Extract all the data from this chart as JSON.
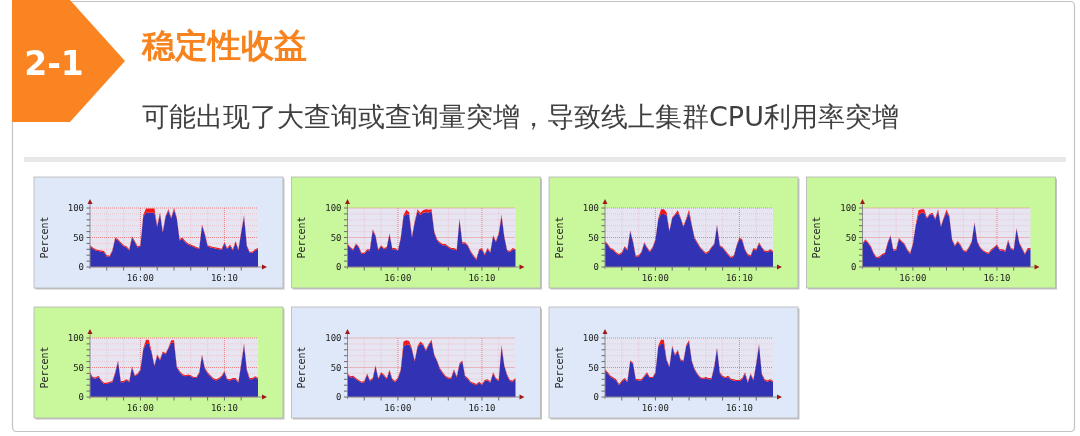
{
  "chart_data": [
    {
      "type": "area",
      "stacked": true,
      "title": "稳定性收益",
      "subtitle": "可能出现了大查询或查询量突增，导致线上集群CPU利用率突增",
      "annotations": [
        "2-1"
      ],
      "ylabel": "Percent",
      "grid": true,
      "xlim": [
        15.9,
        16.2333
      ],
      "ylim": [
        0,
        100
      ],
      "xticks": [
        {
          "value": 15.9333,
          "label": null
        },
        {
          "value": 15.9667,
          "label": null
        },
        {
          "value": 16,
          "label": "16:00"
        },
        {
          "value": 16.0333,
          "label": null
        },
        {
          "value": 16.0667,
          "label": null
        },
        {
          "value": 16.1,
          "label": null
        },
        {
          "value": 16.1333,
          "label": null
        },
        {
          "value": 16.1667,
          "label": "16:10"
        },
        {
          "value": 16.2,
          "label": null
        }
      ],
      "yticks": [
        0,
        {
          "value": 10,
          "label": null
        },
        {
          "value": 20,
          "label": null
        },
        {
          "value": 30,
          "label": null
        },
        {
          "value": 40,
          "label": null
        },
        50,
        {
          "value": 60,
          "label": null
        },
        {
          "value": 70,
          "label": null
        },
        {
          "value": 80,
          "label": null
        },
        {
          "value": 90,
          "label": null
        },
        100
      ],
      "x": [
        15.9,
        15.9056,
        15.9111,
        15.9167,
        15.9222,
        15.9278,
        15.9333,
        15.9389,
        15.9444,
        15.95,
        15.9556,
        15.9611,
        15.9667,
        15.9722,
        15.9778,
        15.9833,
        15.9889,
        15.9944,
        16,
        16.0056,
        16.0111,
        16.0167,
        16.0222,
        16.0278,
        16.0333,
        16.0389,
        16.0444,
        16.05,
        16.0556,
        16.0611,
        16.0667,
        16.0722,
        16.0778,
        16.0833,
        16.0889,
        16.0944,
        16.1,
        16.1056,
        16.1111,
        16.1167,
        16.1222,
        16.1278,
        16.1333,
        16.1389,
        16.1444,
        16.15,
        16.1556,
        16.1611,
        16.1667,
        16.1722,
        16.1778,
        16.1833,
        16.1889,
        16.1944,
        16.2,
        16.2056,
        16.2111,
        16.2167,
        16.2222,
        16.2278,
        16.2333
      ],
      "series": [
        {
          "color": "#3232b4",
          "values": [
            35,
            31,
            28,
            27,
            26,
            25,
            18,
            17,
            27,
            48,
            45,
            40,
            35,
            33,
            28,
            50,
            42,
            33,
            35,
            85,
            92,
            92,
            92,
            92,
            68,
            90,
            58,
            85,
            95,
            82,
            97,
            82,
            45,
            48,
            42,
            38,
            36,
            34,
            32,
            30,
            70,
            55,
            35,
            33,
            32,
            31,
            30,
            29,
            40,
            30,
            36,
            28,
            42,
            28,
            58,
            85,
            35,
            24,
            24,
            28,
            30
          ]
        },
        {
          "color": "#f01818",
          "values": [
            2,
            2,
            2,
            2,
            2,
            2,
            2,
            2,
            2,
            2,
            2,
            2,
            2,
            2,
            2,
            2,
            2,
            2,
            2,
            3,
            7,
            7,
            7,
            7,
            2,
            3,
            2,
            2,
            3,
            2,
            3,
            2,
            2,
            2,
            2,
            2,
            2,
            2,
            2,
            2,
            2,
            2,
            2,
            2,
            2,
            2,
            2,
            2,
            2,
            2,
            2,
            2,
            2,
            2,
            2,
            3,
            2,
            2,
            2,
            2,
            2
          ]
        }
      ]
    },
    {
      "type": "area",
      "stacked": true,
      "ylabel": "Percent",
      "grid": true,
      "xlim": [
        15.9,
        16.2333
      ],
      "ylim": [
        0,
        100
      ],
      "xticks": [
        {
          "value": 15.9333,
          "label": null
        },
        {
          "value": 15.9667,
          "label": null
        },
        {
          "value": 16,
          "label": "16:00"
        },
        {
          "value": 16.0333,
          "label": null
        },
        {
          "value": 16.0667,
          "label": null
        },
        {
          "value": 16.1,
          "label": null
        },
        {
          "value": 16.1333,
          "label": null
        },
        {
          "value": 16.1667,
          "label": "16:10"
        },
        {
          "value": 16.2,
          "label": null
        }
      ],
      "yticks": [
        0,
        {
          "value": 10,
          "label": null
        },
        {
          "value": 20,
          "label": null
        },
        {
          "value": 30,
          "label": null
        },
        {
          "value": 40,
          "label": null
        },
        50,
        {
          "value": 60,
          "label": null
        },
        {
          "value": 70,
          "label": null
        },
        {
          "value": 80,
          "label": null
        },
        {
          "value": 90,
          "label": null
        },
        100
      ],
      "x": [
        15.9,
        15.9056,
        15.9111,
        15.9167,
        15.9222,
        15.9278,
        15.9333,
        15.9389,
        15.9444,
        15.95,
        15.9556,
        15.9611,
        15.9667,
        15.9722,
        15.9778,
        15.9833,
        15.9889,
        15.9944,
        16,
        16.0056,
        16.0111,
        16.0167,
        16.0222,
        16.0278,
        16.0333,
        16.0389,
        16.0444,
        16.05,
        16.0556,
        16.0611,
        16.0667,
        16.0722,
        16.0778,
        16.0833,
        16.0889,
        16.0944,
        16.1,
        16.1056,
        16.1111,
        16.1167,
        16.1222,
        16.1278,
        16.1333,
        16.1389,
        16.1444,
        16.15,
        16.1556,
        16.1611,
        16.1667,
        16.1722,
        16.1778,
        16.1833,
        16.1889,
        16.1944,
        16.2,
        16.2056,
        16.2111,
        16.2167,
        16.2222,
        16.2278,
        16.2333
      ],
      "series": [
        {
          "color": "#3232b4",
          "values": [
            38,
            32,
            28,
            38,
            33,
            22,
            22,
            28,
            28,
            62,
            52,
            28,
            35,
            30,
            32,
            55,
            30,
            30,
            27,
            48,
            85,
            90,
            88,
            50,
            75,
            95,
            88,
            92,
            93,
            92,
            95,
            58,
            45,
            40,
            37,
            37,
            33,
            30,
            30,
            28,
            80,
            40,
            40,
            35,
            25,
            18,
            12,
            28,
            30,
            20,
            30,
            24,
            52,
            42,
            55,
            86,
            50,
            27,
            25,
            30,
            28
          ]
        },
        {
          "color": "#f01818",
          "values": [
            2,
            2,
            2,
            2,
            2,
            2,
            2,
            2,
            2,
            2,
            2,
            2,
            2,
            2,
            2,
            2,
            2,
            2,
            2,
            2,
            3,
            7,
            5,
            2,
            2,
            3,
            4,
            4,
            5,
            5,
            3,
            2,
            2,
            2,
            2,
            2,
            2,
            2,
            2,
            2,
            2,
            2,
            2,
            2,
            2,
            2,
            2,
            2,
            2,
            2,
            2,
            2,
            2,
            2,
            2,
            3,
            2,
            2,
            2,
            2,
            2
          ]
        }
      ]
    },
    {
      "type": "area",
      "stacked": true,
      "ylabel": "Percent",
      "grid": true,
      "xlim": [
        15.9,
        16.2333
      ],
      "ylim": [
        0,
        100
      ],
      "xticks": [
        {
          "value": 15.9333,
          "label": null
        },
        {
          "value": 15.9667,
          "label": null
        },
        {
          "value": 16,
          "label": "16:00"
        },
        {
          "value": 16.0333,
          "label": null
        },
        {
          "value": 16.0667,
          "label": null
        },
        {
          "value": 16.1,
          "label": null
        },
        {
          "value": 16.1333,
          "label": null
        },
        {
          "value": 16.1667,
          "label": "16:10"
        },
        {
          "value": 16.2,
          "label": null
        }
      ],
      "yticks": [
        0,
        {
          "value": 10,
          "label": null
        },
        {
          "value": 20,
          "label": null
        },
        {
          "value": 30,
          "label": null
        },
        {
          "value": 40,
          "label": null
        },
        50,
        {
          "value": 60,
          "label": null
        },
        {
          "value": 70,
          "label": null
        },
        {
          "value": 80,
          "label": null
        },
        {
          "value": 90,
          "label": null
        },
        100
      ],
      "x": [
        15.9,
        15.9056,
        15.9111,
        15.9167,
        15.9222,
        15.9278,
        15.9333,
        15.9389,
        15.9444,
        15.95,
        15.9556,
        15.9611,
        15.9667,
        15.9722,
        15.9778,
        15.9833,
        15.9889,
        15.9944,
        16,
        16.0056,
        16.0111,
        16.0167,
        16.0222,
        16.0278,
        16.0333,
        16.0389,
        16.0444,
        16.05,
        16.0556,
        16.0611,
        16.0667,
        16.0722,
        16.0778,
        16.0833,
        16.0889,
        16.0944,
        16.1,
        16.1056,
        16.1111,
        16.1167,
        16.1222,
        16.1278,
        16.1333,
        16.1389,
        16.1444,
        16.15,
        16.1556,
        16.1611,
        16.1667,
        16.1722,
        16.1778,
        16.1833,
        16.1889,
        16.1944,
        16.2,
        16.2056,
        16.2111,
        16.2167,
        16.2222,
        16.2278,
        16.2333
      ],
      "series": [
        {
          "color": "#3232b4",
          "values": [
            42,
            37,
            30,
            28,
            23,
            20,
            23,
            33,
            28,
            60,
            42,
            17,
            18,
            24,
            40,
            32,
            25,
            32,
            45,
            80,
            90,
            90,
            88,
            60,
            82,
            88,
            92,
            82,
            68,
            80,
            92,
            70,
            48,
            40,
            32,
            27,
            22,
            25,
            32,
            38,
            70,
            35,
            32,
            26,
            20,
            15,
            18,
            35,
            48,
            45,
            28,
            20,
            18,
            30,
            28,
            40,
            32,
            26,
            25,
            28,
            25
          ]
        },
        {
          "color": "#f01818",
          "values": [
            2,
            2,
            2,
            2,
            2,
            2,
            2,
            2,
            2,
            2,
            2,
            2,
            2,
            2,
            2,
            2,
            2,
            2,
            2,
            2,
            8,
            8,
            5,
            2,
            2,
            2,
            4,
            2,
            2,
            2,
            5,
            2,
            2,
            2,
            2,
            2,
            2,
            2,
            2,
            2,
            2,
            2,
            2,
            2,
            2,
            2,
            2,
            2,
            2,
            2,
            2,
            2,
            2,
            2,
            2,
            2,
            2,
            2,
            2,
            2,
            2
          ]
        }
      ]
    },
    {
      "type": "area",
      "stacked": true,
      "ylabel": "Percent",
      "grid": true,
      "xlim": [
        15.9,
        16.2333
      ],
      "ylim": [
        0,
        100
      ],
      "xticks": [
        {
          "value": 15.9333,
          "label": null
        },
        {
          "value": 15.9667,
          "label": null
        },
        {
          "value": 16,
          "label": "16:00"
        },
        {
          "value": 16.0333,
          "label": null
        },
        {
          "value": 16.0667,
          "label": null
        },
        {
          "value": 16.1,
          "label": null
        },
        {
          "value": 16.1333,
          "label": null
        },
        {
          "value": 16.1667,
          "label": "16:10"
        },
        {
          "value": 16.2,
          "label": null
        }
      ],
      "yticks": [
        0,
        {
          "value": 10,
          "label": null
        },
        {
          "value": 20,
          "label": null
        },
        {
          "value": 30,
          "label": null
        },
        {
          "value": 40,
          "label": null
        },
        50,
        {
          "value": 60,
          "label": null
        },
        {
          "value": 70,
          "label": null
        },
        {
          "value": 80,
          "label": null
        },
        {
          "value": 90,
          "label": null
        },
        100
      ],
      "x": [
        15.9,
        15.9056,
        15.9111,
        15.9167,
        15.9222,
        15.9278,
        15.9333,
        15.9389,
        15.9444,
        15.95,
        15.9556,
        15.9611,
        15.9667,
        15.9722,
        15.9778,
        15.9833,
        15.9889,
        15.9944,
        16,
        16.0056,
        16.0111,
        16.0167,
        16.0222,
        16.0278,
        16.0333,
        16.0389,
        16.0444,
        16.05,
        16.0556,
        16.0611,
        16.0667,
        16.0722,
        16.0778,
        16.0833,
        16.0889,
        16.0944,
        16.1,
        16.1056,
        16.1111,
        16.1167,
        16.1222,
        16.1278,
        16.1333,
        16.1389,
        16.1444,
        16.15,
        16.1556,
        16.1611,
        16.1667,
        16.1722,
        16.1778,
        16.1833,
        16.1889,
        16.1944,
        16.2,
        16.2056,
        16.2111,
        16.2167,
        16.2222,
        16.2278,
        16.2333
      ],
      "series": [
        {
          "color": "#3232b4",
          "values": [
            38,
            45,
            40,
            33,
            22,
            15,
            16,
            20,
            22,
            40,
            52,
            28,
            28,
            47,
            42,
            38,
            28,
            22,
            38,
            70,
            88,
            92,
            92,
            82,
            88,
            90,
            80,
            95,
            68,
            82,
            92,
            85,
            45,
            35,
            42,
            36,
            27,
            25,
            32,
            42,
            74,
            42,
            32,
            27,
            24,
            22,
            28,
            32,
            36,
            28,
            28,
            26,
            44,
            30,
            28,
            64,
            40,
            30,
            21,
            30,
            30
          ]
        },
        {
          "color": "#f01818",
          "values": [
            2,
            2,
            2,
            2,
            2,
            2,
            2,
            2,
            2,
            2,
            2,
            2,
            2,
            2,
            2,
            2,
            2,
            2,
            2,
            2,
            8,
            6,
            6,
            2,
            2,
            2,
            2,
            3,
            2,
            2,
            5,
            2,
            2,
            2,
            2,
            2,
            2,
            2,
            2,
            2,
            2,
            2,
            2,
            2,
            2,
            2,
            2,
            2,
            2,
            2,
            2,
            2,
            2,
            2,
            2,
            2,
            2,
            2,
            2,
            2,
            2
          ]
        }
      ]
    },
    {
      "type": "area",
      "stacked": true,
      "ylabel": "Percent",
      "grid": true,
      "xlim": [
        15.9,
        16.2333
      ],
      "ylim": [
        0,
        100
      ],
      "xticks": [
        {
          "value": 15.9333,
          "label": null
        },
        {
          "value": 15.9667,
          "label": null
        },
        {
          "value": 16,
          "label": "16:00"
        },
        {
          "value": 16.0333,
          "label": null
        },
        {
          "value": 16.0667,
          "label": null
        },
        {
          "value": 16.1,
          "label": null
        },
        {
          "value": 16.1333,
          "label": null
        },
        {
          "value": 16.1667,
          "label": "16:10"
        },
        {
          "value": 16.2,
          "label": null
        }
      ],
      "yticks": [
        0,
        {
          "value": 10,
          "label": null
        },
        {
          "value": 20,
          "label": null
        },
        {
          "value": 30,
          "label": null
        },
        {
          "value": 40,
          "label": null
        },
        50,
        {
          "value": 60,
          "label": null
        },
        {
          "value": 70,
          "label": null
        },
        {
          "value": 80,
          "label": null
        },
        {
          "value": 90,
          "label": null
        },
        100
      ],
      "x": [
        15.9,
        15.9056,
        15.9111,
        15.9167,
        15.9222,
        15.9278,
        15.9333,
        15.9389,
        15.9444,
        15.95,
        15.9556,
        15.9611,
        15.9667,
        15.9722,
        15.9778,
        15.9833,
        15.9889,
        15.9944,
        16,
        16.0056,
        16.0111,
        16.0167,
        16.0222,
        16.0278,
        16.0333,
        16.0389,
        16.0444,
        16.05,
        16.0556,
        16.0611,
        16.0667,
        16.0722,
        16.0778,
        16.0833,
        16.0889,
        16.0944,
        16.1,
        16.1056,
        16.1111,
        16.1167,
        16.1222,
        16.1278,
        16.1333,
        16.1389,
        16.1444,
        16.15,
        16.1556,
        16.1611,
        16.1667,
        16.1722,
        16.1778,
        16.1833,
        16.1889,
        16.1944,
        16.2,
        16.2056,
        16.2111,
        16.2167,
        16.2222,
        16.2278,
        16.2333
      ],
      "series": [
        {
          "color": "#3232b4",
          "values": [
            40,
            32,
            31,
            34,
            27,
            22,
            22,
            24,
            25,
            40,
            60,
            25,
            25,
            28,
            25,
            50,
            35,
            38,
            45,
            80,
            90,
            90,
            75,
            52,
            70,
            62,
            75,
            72,
            82,
            92,
            92,
            50,
            42,
            37,
            35,
            36,
            35,
            32,
            32,
            40,
            70,
            48,
            40,
            35,
            30,
            28,
            30,
            34,
            42,
            29,
            28,
            30,
            30,
            24,
            55,
            88,
            45,
            30,
            30,
            33,
            30
          ]
        },
        {
          "color": "#f01818",
          "values": [
            2,
            2,
            2,
            2,
            2,
            2,
            2,
            2,
            2,
            2,
            2,
            2,
            2,
            2,
            2,
            2,
            2,
            2,
            2,
            2,
            7,
            7,
            2,
            2,
            2,
            2,
            2,
            2,
            2,
            4,
            4,
            2,
            2,
            2,
            2,
            2,
            2,
            2,
            2,
            2,
            2,
            2,
            2,
            2,
            2,
            2,
            2,
            2,
            2,
            2,
            2,
            2,
            2,
            2,
            2,
            3,
            2,
            2,
            2,
            2,
            2
          ]
        }
      ]
    },
    {
      "type": "area",
      "stacked": true,
      "ylabel": "Percent",
      "grid": true,
      "xlim": [
        15.9,
        16.2333
      ],
      "ylim": [
        0,
        100
      ],
      "xticks": [
        {
          "value": 15.9333,
          "label": null
        },
        {
          "value": 15.9667,
          "label": null
        },
        {
          "value": 16,
          "label": "16:00"
        },
        {
          "value": 16.0333,
          "label": null
        },
        {
          "value": 16.0667,
          "label": null
        },
        {
          "value": 16.1,
          "label": null
        },
        {
          "value": 16.1333,
          "label": null
        },
        {
          "value": 16.1667,
          "label": "16:10"
        },
        {
          "value": 16.2,
          "label": null
        }
      ],
      "yticks": [
        0,
        {
          "value": 10,
          "label": null
        },
        {
          "value": 20,
          "label": null
        },
        {
          "value": 30,
          "label": null
        },
        {
          "value": 40,
          "label": null
        },
        50,
        {
          "value": 60,
          "label": null
        },
        {
          "value": 70,
          "label": null
        },
        {
          "value": 80,
          "label": null
        },
        {
          "value": 90,
          "label": null
        },
        100
      ],
      "x": [
        15.9,
        15.9056,
        15.9111,
        15.9167,
        15.9222,
        15.9278,
        15.9333,
        15.9389,
        15.9444,
        15.95,
        15.9556,
        15.9611,
        15.9667,
        15.9722,
        15.9778,
        15.9833,
        15.9889,
        15.9944,
        16,
        16.0056,
        16.0111,
        16.0167,
        16.0222,
        16.0278,
        16.0333,
        16.0389,
        16.0444,
        16.05,
        16.0556,
        16.0611,
        16.0667,
        16.0722,
        16.0778,
        16.0833,
        16.0889,
        16.0944,
        16.1,
        16.1056,
        16.1111,
        16.1167,
        16.1222,
        16.1278,
        16.1333,
        16.1389,
        16.1444,
        16.15,
        16.1556,
        16.1611,
        16.1667,
        16.1722,
        16.1778,
        16.1833,
        16.1889,
        16.1944,
        16.2,
        16.2056,
        16.2111,
        16.2167,
        16.2222,
        16.2278,
        16.2333
      ],
      "series": [
        {
          "color": "#3232b4",
          "values": [
            38,
            33,
            34,
            30,
            27,
            24,
            25,
            38,
            27,
            30,
            52,
            30,
            40,
            36,
            30,
            44,
            29,
            25,
            31,
            45,
            86,
            88,
            89,
            80,
            60,
            84,
            90,
            88,
            78,
            88,
            94,
            70,
            60,
            47,
            40,
            34,
            31,
            31,
            45,
            33,
            55,
            60,
            34,
            30,
            24,
            22,
            20,
            24,
            20,
            27,
            28,
            24,
            40,
            30,
            27,
            85,
            52,
            36,
            27,
            26,
            30
          ]
        },
        {
          "color": "#f01818",
          "values": [
            2,
            2,
            2,
            2,
            2,
            2,
            2,
            2,
            2,
            2,
            2,
            2,
            2,
            2,
            2,
            2,
            2,
            2,
            2,
            2,
            8,
            8,
            6,
            2,
            2,
            2,
            4,
            2,
            2,
            2,
            3,
            2,
            2,
            2,
            2,
            2,
            2,
            2,
            2,
            2,
            2,
            2,
            2,
            2,
            2,
            2,
            2,
            2,
            2,
            2,
            2,
            2,
            2,
            2,
            2,
            3,
            2,
            2,
            2,
            2,
            2
          ]
        }
      ]
    },
    {
      "type": "area",
      "stacked": true,
      "ylabel": "Percent",
      "grid": true,
      "xlim": [
        15.9,
        16.2333
      ],
      "ylim": [
        0,
        100
      ],
      "xticks": [
        {
          "value": 15.9333,
          "label": null
        },
        {
          "value": 15.9667,
          "label": null
        },
        {
          "value": 16,
          "label": "16:00"
        },
        {
          "value": 16.0333,
          "label": null
        },
        {
          "value": 16.0667,
          "label": null
        },
        {
          "value": 16.1,
          "label": null
        },
        {
          "value": 16.1333,
          "label": null
        },
        {
          "value": 16.1667,
          "label": "16:10"
        },
        {
          "value": 16.2,
          "label": null
        }
      ],
      "yticks": [
        0,
        {
          "value": 10,
          "label": null
        },
        {
          "value": 20,
          "label": null
        },
        {
          "value": 30,
          "label": null
        },
        {
          "value": 40,
          "label": null
        },
        50,
        {
          "value": 60,
          "label": null
        },
        {
          "value": 70,
          "label": null
        },
        {
          "value": 80,
          "label": null
        },
        {
          "value": 90,
          "label": null
        },
        100
      ],
      "x": [
        15.9,
        15.9056,
        15.9111,
        15.9167,
        15.9222,
        15.9278,
        15.9333,
        15.9389,
        15.9444,
        15.95,
        15.9556,
        15.9611,
        15.9667,
        15.9722,
        15.9778,
        15.9833,
        15.9889,
        15.9944,
        16,
        16.0056,
        16.0111,
        16.0167,
        16.0222,
        16.0278,
        16.0333,
        16.0389,
        16.0444,
        16.05,
        16.0556,
        16.0611,
        16.0667,
        16.0722,
        16.0778,
        16.0833,
        16.0889,
        16.0944,
        16.1,
        16.1056,
        16.1111,
        16.1167,
        16.1222,
        16.1278,
        16.1333,
        16.1389,
        16.1444,
        16.15,
        16.1556,
        16.1611,
        16.1667,
        16.1722,
        16.1778,
        16.1833,
        16.1889,
        16.1944,
        16.2,
        16.2056,
        16.2111,
        16.2167,
        16.2222,
        16.2278,
        16.2333
      ],
      "series": [
        {
          "color": "#3232b4",
          "values": [
            45,
            40,
            34,
            31,
            28,
            20,
            26,
            30,
            25,
            60,
            56,
            29,
            28,
            28,
            34,
            40,
            32,
            32,
            40,
            85,
            90,
            90,
            62,
            50,
            85,
            70,
            78,
            62,
            60,
            86,
            93,
            60,
            46,
            38,
            32,
            30,
            32,
            30,
            30,
            50,
            82,
            40,
            34,
            32,
            34,
            29,
            28,
            27,
            27,
            30,
            40,
            24,
            38,
            28,
            55,
            88,
            38,
            28,
            26,
            28,
            25
          ]
        },
        {
          "color": "#f01818",
          "values": [
            2,
            2,
            2,
            2,
            2,
            2,
            2,
            2,
            2,
            2,
            2,
            2,
            2,
            2,
            2,
            2,
            2,
            2,
            2,
            2,
            7,
            7,
            2,
            2,
            2,
            2,
            2,
            2,
            2,
            2,
            3,
            2,
            2,
            2,
            2,
            2,
            2,
            2,
            2,
            2,
            2,
            2,
            2,
            2,
            2,
            2,
            2,
            2,
            2,
            2,
            2,
            2,
            2,
            2,
            2,
            2,
            2,
            2,
            2,
            2,
            2
          ]
        }
      ]
    }
  ]
}
